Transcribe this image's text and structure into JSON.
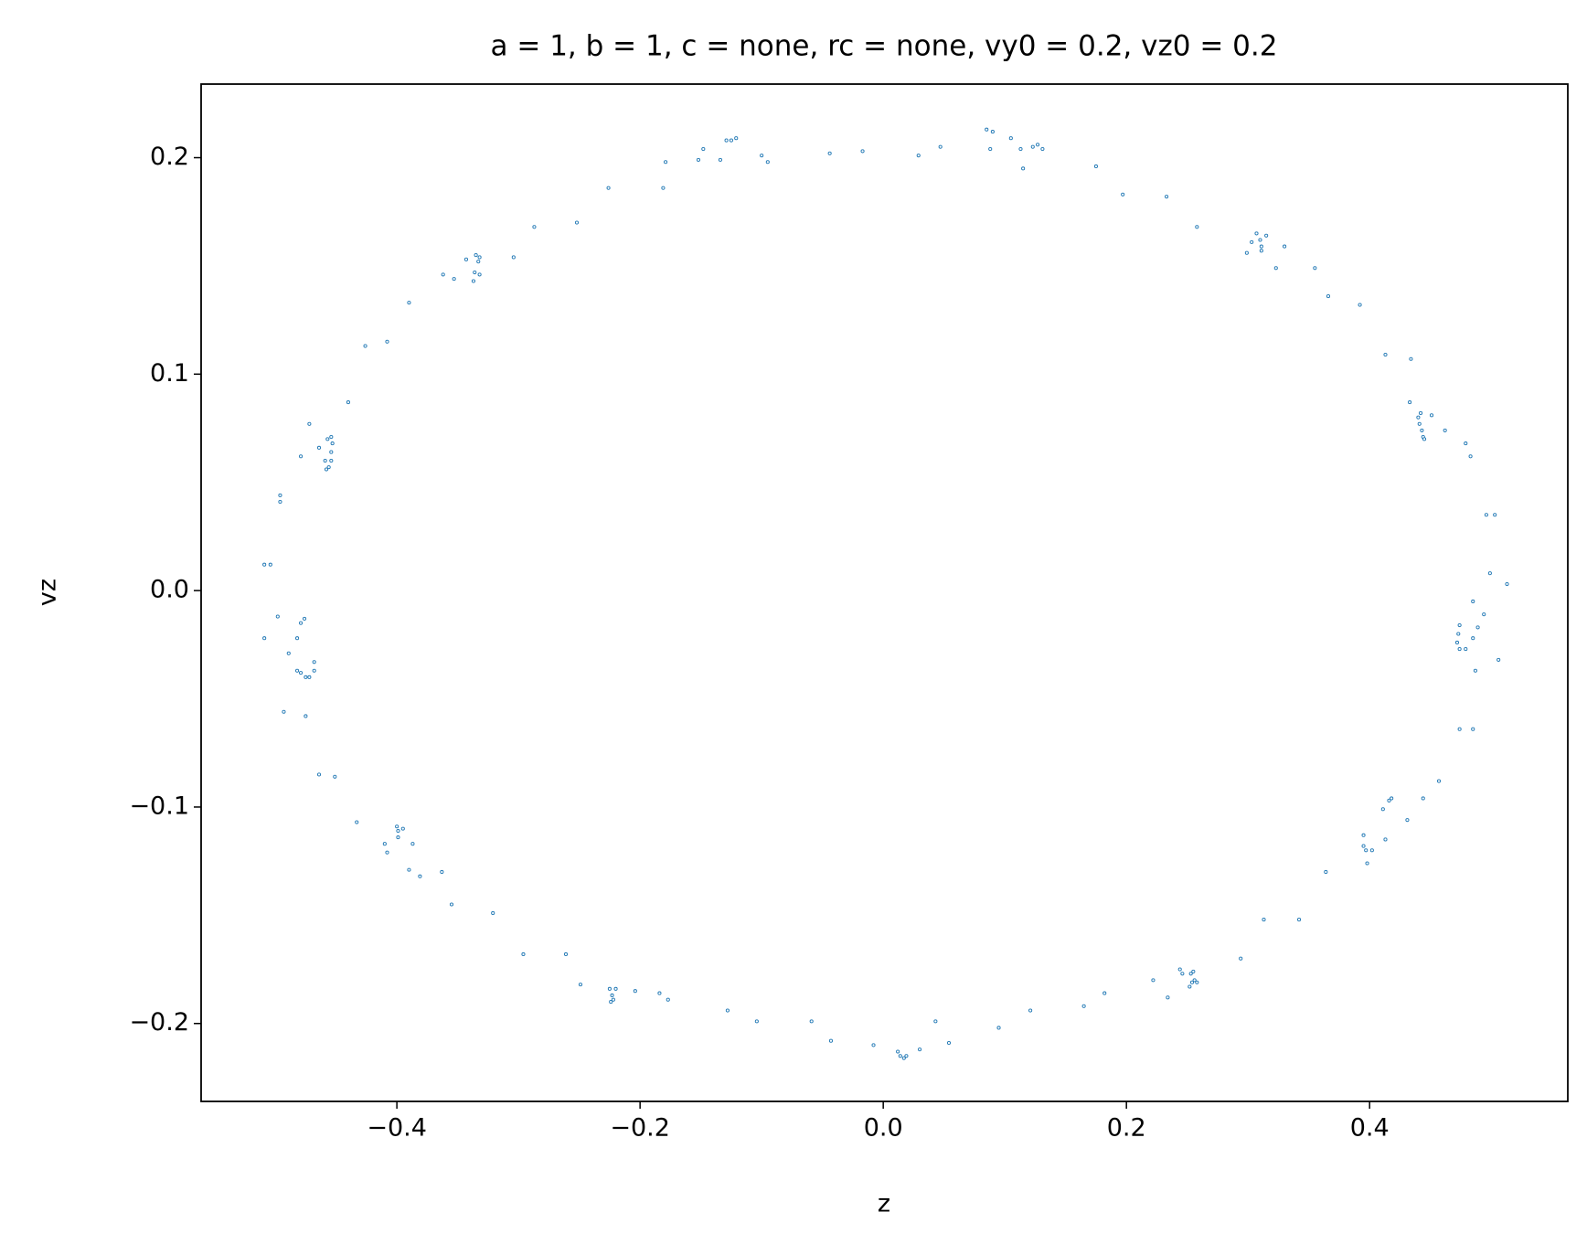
{
  "chart_data": {
    "type": "scatter",
    "title": "a = 1, b = 1, c = none, rc = none, vy0 = 0.2, vz0 = 0.2",
    "x_label": "z",
    "y_label": "vz",
    "color": "#1f77b4",
    "xlim": [
      -0.561,
      0.563
    ],
    "ylim": [
      -0.236,
      0.234
    ],
    "xticks": [
      {
        "value": -0.4,
        "label": "−0.4"
      },
      {
        "value": -0.2,
        "label": "−0.2"
      },
      {
        "value": 0,
        "label": "0.0"
      },
      0.2,
      0.4
    ],
    "yticks": [
      {
        "value": -0.2,
        "label": "−0.2"
      },
      {
        "value": -0.1,
        "label": "−0.1"
      },
      {
        "value": 0,
        "label": "0.0"
      },
      0.1,
      0.2
    ],
    "x": [
      -0.121,
      -0.125,
      -0.129,
      -0.148,
      -0.152,
      -0.134,
      -0.1,
      -0.095,
      -0.044,
      -0.017,
      0.029,
      0.047,
      0.085,
      0.09,
      0.088,
      0.105,
      0.113,
      0.115,
      0.123,
      0.127,
      0.131,
      0.175,
      0.197,
      0.233,
      0.258,
      0.299,
      0.303,
      0.307,
      0.31,
      0.311,
      0.311,
      0.315,
      0.323,
      0.33,
      0.355,
      0.366,
      0.392,
      0.413,
      0.434,
      0.433,
      0.44,
      0.442,
      0.441,
      0.443,
      0.444,
      0.445,
      0.451,
      0.462,
      0.479,
      0.483,
      0.496,
      0.503,
      0.499,
      0.513,
      0.485,
      0.494,
      0.474,
      0.473,
      0.489,
      0.485,
      0.472,
      0.474,
      0.479,
      0.506,
      0.487,
      0.474,
      0.485,
      0.457,
      0.444,
      0.418,
      0.416,
      0.431,
      0.411,
      0.413,
      0.395,
      0.395,
      0.397,
      0.402,
      0.398,
      0.364,
      0.342,
      0.313,
      0.294,
      0.255,
      0.244,
      0.246,
      0.253,
      0.256,
      0.254,
      0.258,
      0.252,
      0.222,
      0.234,
      0.182,
      0.165,
      0.121,
      0.095,
      0.054,
      0.043,
      0.03,
      0.012,
      0.014,
      0.017,
      0.019,
      -0.008,
      -0.043,
      -0.059,
      -0.104,
      -0.128,
      -0.177,
      -0.184,
      -0.204,
      -0.22,
      -0.225,
      -0.223,
      -0.224,
      -0.222,
      -0.249,
      -0.261,
      -0.296,
      -0.321,
      -0.355,
      -0.363,
      -0.381,
      -0.39,
      -0.387,
      -0.399,
      -0.395,
      -0.4,
      -0.399,
      -0.41,
      -0.408,
      -0.433,
      -0.451,
      -0.464,
      -0.475,
      -0.493,
      -0.472,
      -0.468,
      -0.468,
      -0.475,
      -0.482,
      -0.479,
      -0.489,
      -0.482,
      -0.509,
      -0.479,
      -0.476,
      -0.498,
      -0.509,
      -0.504,
      -0.496,
      -0.496,
      -0.479,
      -0.464,
      -0.458,
      -0.456,
      -0.459,
      -0.454,
      -0.454,
      -0.457,
      -0.453,
      -0.454,
      -0.472,
      -0.44,
      -0.426,
      -0.408,
      -0.39,
      -0.362,
      -0.353,
      -0.343,
      -0.337,
      -0.336,
      -0.335,
      -0.332,
      -0.333,
      -0.332,
      -0.304,
      -0.287,
      -0.252,
      -0.226,
      -0.181,
      -0.179
    ],
    "values": [
      0.209,
      0.208,
      0.208,
      0.204,
      0.199,
      0.199,
      0.201,
      0.198,
      0.202,
      0.203,
      0.201,
      0.205,
      0.213,
      0.212,
      0.204,
      0.209,
      0.204,
      0.195,
      0.205,
      0.206,
      0.204,
      0.196,
      0.183,
      0.182,
      0.168,
      0.156,
      0.161,
      0.165,
      0.162,
      0.159,
      0.157,
      0.164,
      0.149,
      0.159,
      0.149,
      0.136,
      0.132,
      0.109,
      0.107,
      0.087,
      0.08,
      0.082,
      0.077,
      0.074,
      0.071,
      0.07,
      0.081,
      0.074,
      0.068,
      0.062,
      0.035,
      0.035,
      0.008,
      0.003,
      -0.005,
      -0.011,
      -0.016,
      -0.02,
      -0.017,
      -0.022,
      -0.024,
      -0.027,
      -0.027,
      -0.032,
      -0.037,
      -0.064,
      -0.064,
      -0.088,
      -0.096,
      -0.096,
      -0.097,
      -0.106,
      -0.101,
      -0.115,
      -0.113,
      -0.118,
      -0.12,
      -0.12,
      -0.126,
      -0.13,
      -0.152,
      -0.152,
      -0.17,
      -0.176,
      -0.175,
      -0.177,
      -0.177,
      -0.18,
      -0.181,
      -0.181,
      -0.183,
      -0.18,
      -0.188,
      -0.186,
      -0.192,
      -0.194,
      -0.202,
      -0.209,
      -0.199,
      -0.212,
      -0.213,
      -0.215,
      -0.216,
      -0.215,
      -0.21,
      -0.208,
      -0.199,
      -0.199,
      -0.194,
      -0.189,
      -0.186,
      -0.185,
      -0.184,
      -0.184,
      -0.187,
      -0.19,
      -0.189,
      -0.182,
      -0.168,
      -0.168,
      -0.149,
      -0.145,
      -0.13,
      -0.132,
      -0.129,
      -0.117,
      -0.111,
      -0.11,
      -0.109,
      -0.114,
      -0.117,
      -0.121,
      -0.107,
      -0.086,
      -0.085,
      -0.058,
      -0.056,
      -0.04,
      -0.037,
      -0.033,
      -0.04,
      -0.037,
      -0.038,
      -0.029,
      -0.022,
      -0.022,
      -0.015,
      -0.013,
      -0.012,
      0.012,
      0.012,
      0.041,
      0.044,
      0.062,
      0.066,
      0.056,
      0.057,
      0.06,
      0.06,
      0.064,
      0.07,
      0.068,
      0.071,
      0.077,
      0.087,
      0.113,
      0.115,
      0.133,
      0.146,
      0.144,
      0.153,
      0.143,
      0.147,
      0.155,
      0.146,
      0.152,
      0.154,
      0.154,
      0.168,
      0.17,
      0.186,
      0.186,
      0.198
    ]
  }
}
